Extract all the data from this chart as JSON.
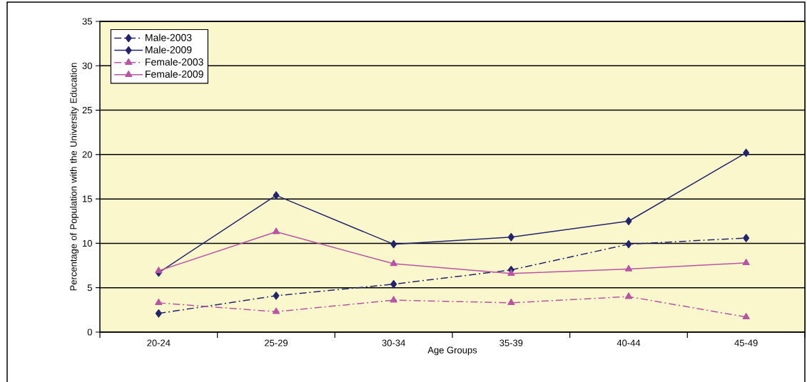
{
  "chart_data": {
    "type": "line",
    "xlabel": "Age Groups",
    "ylabel": "Percentage of Population with the University Education",
    "categories": [
      "20-24",
      "25-29",
      "30-34",
      "35-39",
      "40-44",
      "45-49"
    ],
    "ylim": [
      0,
      35
    ],
    "yticks": [
      0,
      5,
      10,
      15,
      20,
      25,
      30,
      35
    ],
    "grid": "y",
    "legend": "top left",
    "series": [
      {
        "name": "Male-2003",
        "color": "#24246e",
        "marker": "diamond",
        "line_style": "dashed",
        "values": [
          2.1,
          4.1,
          5.4,
          7.0,
          9.9,
          10.6
        ]
      },
      {
        "name": "Male-2009",
        "color": "#24246e",
        "marker": "diamond",
        "line_style": "solid",
        "values": [
          6.7,
          15.4,
          9.9,
          10.7,
          12.5,
          20.2
        ]
      },
      {
        "name": "Female-2003",
        "color": "#b855a4",
        "marker": "triangle",
        "line_style": "dashed",
        "values": [
          3.3,
          2.3,
          3.6,
          3.3,
          4.0,
          1.7
        ]
      },
      {
        "name": "Female-2009",
        "color": "#b855a4",
        "marker": "triangle",
        "line_style": "solid",
        "values": [
          6.9,
          11.3,
          7.7,
          6.6,
          7.1,
          7.8
        ]
      }
    ]
  }
}
